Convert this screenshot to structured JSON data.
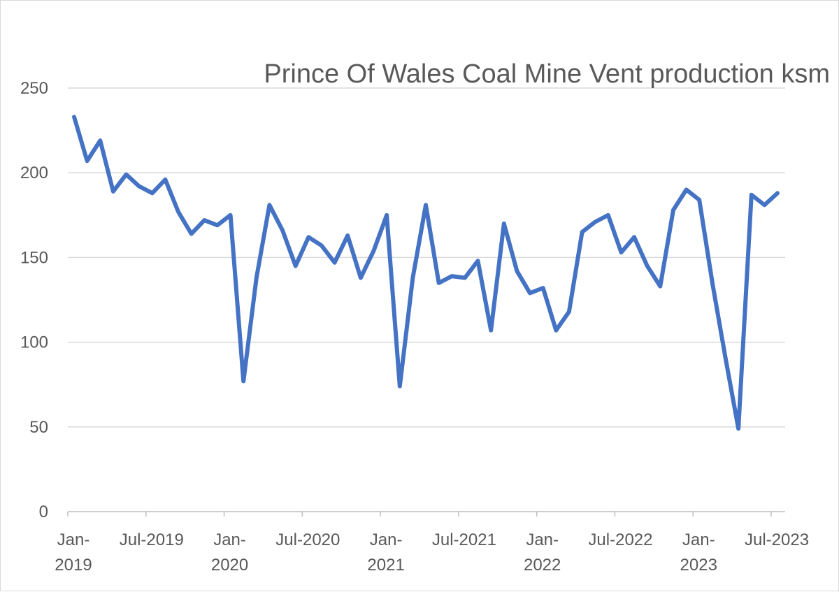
{
  "chart_data": {
    "type": "line",
    "title": "Prince Of Wales Coal Mine Vent production ksm",
    "xlabel": "",
    "ylabel": "",
    "ylim": [
      0,
      250
    ],
    "y_ticks": [
      0,
      50,
      100,
      150,
      200,
      250
    ],
    "x_tick_labels": [
      {
        "index": 0,
        "lines": [
          "Jan-",
          "2019"
        ]
      },
      {
        "index": 6,
        "lines": [
          "Jul-2019"
        ]
      },
      {
        "index": 12,
        "lines": [
          "Jan-",
          "2020"
        ]
      },
      {
        "index": 18,
        "lines": [
          "Jul-2020"
        ]
      },
      {
        "index": 24,
        "lines": [
          "Jan-",
          "2021"
        ]
      },
      {
        "index": 30,
        "lines": [
          "Jul-2021"
        ]
      },
      {
        "index": 36,
        "lines": [
          "Jan-",
          "2022"
        ]
      },
      {
        "index": 42,
        "lines": [
          "Jul-2022"
        ]
      },
      {
        "index": 48,
        "lines": [
          "Jan-",
          "2023"
        ]
      },
      {
        "index": 54,
        "lines": [
          "Jul-2023"
        ]
      }
    ],
    "series": [
      {
        "name": "Vent production ksm",
        "color": "#4472c4",
        "start": "Jan-2019",
        "frequency": "monthly",
        "values": [
          233,
          207,
          219,
          189,
          199,
          192,
          188,
          196,
          177,
          164,
          172,
          169,
          175,
          77,
          138,
          181,
          166,
          145,
          162,
          157,
          147,
          163,
          138,
          154,
          175,
          74,
          138,
          181,
          135,
          139,
          138,
          148,
          107,
          170,
          142,
          129,
          132,
          107,
          118,
          165,
          171,
          175,
          153,
          162,
          145,
          133,
          178,
          190,
          184,
          135,
          91,
          49,
          187,
          181,
          188
        ]
      }
    ]
  }
}
